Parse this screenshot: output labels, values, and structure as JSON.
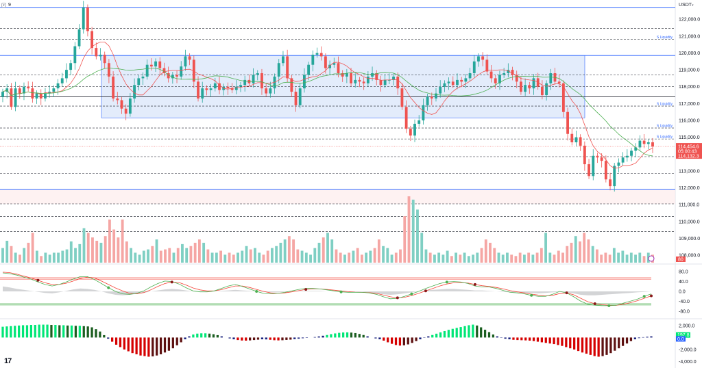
{
  "header": {
    "interval": "9",
    "collapse_icon": "chevron-down-icon",
    "currency": "USDT",
    "currency_icon": "chevron-down-icon"
  },
  "logo": {
    "text": "17",
    "icon": "tradingview-logo-icon"
  },
  "colors": {
    "up": "#26a69a",
    "down": "#ef5350",
    "vol_up": "#7fcfc3",
    "vol_down": "#f5a6a4",
    "ma_fast": "#ef5350",
    "ma_slow": "#4caf50",
    "liquidity": "#2962ff",
    "zone_fill": "#e3ecfb",
    "osc_red": "#f44336",
    "osc_green": "#4caf50",
    "osc_dark": "#1e1e1e",
    "pos_tag": "#2962ff",
    "neg_tag": "#131722"
  },
  "chart_data": {
    "type": "candlestick",
    "price_axis": {
      "range": [
        107600,
        122900
      ],
      "ticks": [
        "122,000.0",
        "121,000.0",
        "120,000.0",
        "119,000.0",
        "118,000.0",
        "117,000.0",
        "116,000.0",
        "115,000.0",
        "114,000.0",
        "113,000.0",
        "112,000.0",
        "111,000.0",
        "110,000.0",
        "109,000.0",
        "108,000.0"
      ],
      "tick_values": [
        122000,
        121000,
        120000,
        119000,
        118000,
        117000,
        116000,
        115000,
        114000,
        113000,
        112000,
        111000,
        110000,
        109000,
        108000
      ]
    },
    "liquidity_lines": [
      {
        "price": 122700,
        "label": "",
        "style": "solid"
      },
      {
        "price": 121450,
        "label": "",
        "style": "dashed"
      },
      {
        "price": 120800,
        "label": "S Liquidity",
        "style": "dashed"
      },
      {
        "price": 119850,
        "label": "",
        "style": "solid"
      },
      {
        "price": 118700,
        "label": "",
        "style": "dashed"
      },
      {
        "price": 118000,
        "label": "",
        "style": "dashed"
      },
      {
        "price": 117400,
        "label": "",
        "style": "solid-dark"
      },
      {
        "price": 116850,
        "label": "S Liquidity",
        "style": "dashed"
      },
      {
        "price": 115550,
        "label": "S Liquidity",
        "style": "dashed"
      },
      {
        "price": 114900,
        "label": "S Liquidity",
        "style": "dashed"
      },
      {
        "price": 113850,
        "label": "",
        "style": "dashed"
      },
      {
        "price": 112850,
        "label": "",
        "style": "dashed"
      },
      {
        "price": 111900,
        "label": "",
        "style": "solid"
      },
      {
        "price": 111050,
        "label": "",
        "style": "dashed"
      },
      {
        "price": 110300,
        "label": "",
        "style": "dashed"
      },
      {
        "price": 109400,
        "label": "",
        "style": "dashed"
      }
    ],
    "zone": {
      "top": 119850,
      "bottom": 116150
    },
    "candle_closes": [
      117700,
      117900,
      116800,
      117900,
      117600,
      118000,
      117900,
      117300,
      117600,
      117300,
      117600,
      117700,
      117900,
      118200,
      118500,
      119000,
      119400,
      120400,
      121400,
      122700,
      121300,
      120300,
      119800,
      119900,
      119400,
      118600,
      117300,
      117200,
      116700,
      116400,
      117300,
      118100,
      118500,
      118600,
      119300,
      119200,
      119500,
      119100,
      118800,
      118500,
      118700,
      118600,
      119200,
      119800,
      119600,
      118300,
      117300,
      117900,
      117800,
      117900,
      118200,
      117800,
      118000,
      117900,
      117800,
      118000,
      118100,
      118400,
      118200,
      118700,
      118800,
      117900,
      117600,
      117900,
      118600,
      119400,
      119800,
      118500,
      117700,
      116900,
      117900,
      118700,
      119300,
      119900,
      120000,
      119800,
      119100,
      119300,
      119400,
      118800,
      118600,
      118800,
      118200,
      118400,
      118300,
      118200,
      118600,
      118800,
      118400,
      118100,
      118400,
      118400,
      118600,
      117900,
      116800,
      115500,
      115100,
      115800,
      116000,
      116900,
      117400,
      117300,
      117600,
      118000,
      118200,
      118300,
      118100,
      118400,
      118300,
      118500,
      118800,
      119500,
      119800,
      119600,
      118900,
      118500,
      118200,
      118700,
      118800,
      119000,
      118700,
      118300,
      117700,
      118100,
      117900,
      118500,
      118000,
      117500,
      118200,
      118800,
      118300,
      118200,
      116500,
      115200,
      114700,
      115000,
      114500,
      113400,
      112700,
      113900,
      113800,
      113600,
      112500,
      112100,
      113300,
      113500,
      113800,
      113900,
      114200,
      114400,
      114800,
      114600,
      114700,
      114450
    ],
    "candle_count_note": "",
    "current_price": "114,454.6",
    "countdown": "05:00:43",
    "prev_close_price": "114,132.3",
    "price_tag_values": [
      114454.6,
      114132.3
    ],
    "volume_label": "80",
    "volume_values": [
      22,
      33,
      25,
      15,
      12,
      22,
      30,
      45,
      18,
      10,
      15,
      12,
      15,
      15,
      18,
      20,
      32,
      22,
      28,
      52,
      45,
      38,
      33,
      30,
      40,
      65,
      50,
      38,
      65,
      32,
      22,
      15,
      12,
      18,
      20,
      25,
      35,
      18,
      20,
      22,
      15,
      22,
      28,
      22,
      25,
      30,
      35,
      30,
      20,
      15,
      15,
      18,
      12,
      15,
      12,
      15,
      18,
      25,
      20,
      22,
      15,
      12,
      18,
      22,
      25,
      30,
      35,
      40,
      35,
      20,
      18,
      15,
      12,
      22,
      30,
      38,
      45,
      35,
      20,
      15,
      12,
      15,
      18,
      22,
      12,
      15,
      18,
      22,
      35,
      25,
      22,
      12,
      15,
      20,
      70,
      100,
      95,
      80,
      45,
      20,
      15,
      12,
      15,
      12,
      18,
      10,
      15,
      12,
      15,
      10,
      12,
      15,
      22,
      35,
      30,
      22,
      15,
      12,
      15,
      12,
      10,
      15,
      12,
      15,
      12,
      15,
      22,
      45,
      15,
      12,
      18,
      15,
      25,
      30,
      40,
      32,
      45,
      35,
      25,
      20,
      12,
      15,
      12,
      22,
      15,
      18,
      12,
      15,
      12,
      15,
      10,
      15,
      12
    ],
    "stoch": {
      "axis_ticks": [
        "80.0",
        "40.0",
        "0.0",
        "-40.0",
        "-80.0"
      ],
      "axis_values": [
        80,
        40,
        0,
        -40,
        -80
      ],
      "range": [
        -100,
        100
      ],
      "upper_band": 55,
      "lower_band": -55,
      "k": [
        75,
        72,
        66,
        58,
        50,
        38,
        28,
        22,
        28,
        38,
        50,
        60,
        60,
        48,
        32,
        15,
        0,
        -10,
        -12,
        -8,
        2,
        18,
        32,
        42,
        40,
        30,
        15,
        2,
        -2,
        -2,
        2,
        12,
        22,
        28,
        20,
        10,
        0,
        -8,
        -10,
        -8,
        -4,
        2,
        8,
        12,
        12,
        10,
        6,
        2,
        -2,
        -4,
        -4,
        -4,
        -6,
        -12,
        -22,
        -30,
        -28,
        -20,
        -10,
        0,
        12,
        22,
        32,
        38,
        40,
        38,
        32,
        22,
        18,
        18,
        12,
        4,
        -4,
        -6,
        -10,
        -16,
        -20,
        -20,
        -12,
        0,
        -6,
        -22,
        -40,
        -52,
        -56,
        -58,
        -58,
        -56,
        -48,
        -40,
        -32,
        -20,
        -10
      ],
      "d": [
        78,
        76,
        70,
        62,
        55,
        45,
        35,
        28,
        28,
        33,
        42,
        52,
        58,
        55,
        42,
        28,
        14,
        2,
        -8,
        -10,
        -5,
        6,
        20,
        32,
        38,
        36,
        26,
        14,
        6,
        2,
        2,
        7,
        15,
        22,
        22,
        16,
        8,
        0,
        -6,
        -8,
        -6,
        -2,
        3,
        8,
        10,
        10,
        8,
        5,
        2,
        -1,
        -3,
        -4,
        -5,
        -8,
        -15,
        -22,
        -26,
        -24,
        -17,
        -8,
        2,
        12,
        22,
        30,
        35,
        36,
        34,
        28,
        23,
        20,
        16,
        10,
        3,
        -2,
        -6,
        -11,
        -15,
        -18,
        -16,
        -9,
        -6,
        -14,
        -28,
        -42,
        -50,
        -54,
        -56,
        -57,
        -52,
        -46,
        -38,
        -28,
        -18
      ],
      "shadow": [
        20,
        16,
        10,
        6,
        2,
        -2,
        -6,
        -8,
        -4,
        2,
        8,
        12,
        10,
        6,
        0,
        -8,
        -14,
        -16,
        -14,
        -10,
        -6,
        0,
        4,
        8,
        10,
        8,
        4,
        0,
        -2,
        -2,
        0,
        2,
        4,
        6,
        4,
        2,
        0,
        -2,
        -4,
        -4,
        -2,
        0,
        2,
        2,
        2,
        2,
        0,
        0,
        -2,
        -2,
        -2,
        -2,
        -4,
        -8,
        -12,
        -14,
        -12,
        -8,
        -4,
        0,
        4,
        6,
        8,
        10,
        10,
        8,
        6,
        4,
        4,
        2,
        0,
        -2,
        -4,
        -4,
        -6,
        -6,
        -8,
        -6,
        -4,
        -2,
        -4,
        -8,
        -14,
        -16,
        -16,
        -14,
        -12,
        -10,
        -8,
        -6,
        -4,
        -2,
        0
      ],
      "green_dot_indices": [
        15,
        36,
        48,
        58,
        63,
        75,
        86,
        91
      ],
      "red_dot_indices": [
        5,
        24,
        43,
        56,
        60,
        67,
        80,
        84,
        92
      ]
    },
    "histogram": {
      "axis_ticks": [
        "2,000.0",
        "-2,000.0",
        "-4,000.0"
      ],
      "axis_values": [
        2000,
        -2000,
        -4000
      ],
      "range": [
        -4400,
        2900
      ],
      "current_value": "197.8",
      "zero_label": "0.0",
      "values": [
        1800,
        1850,
        1900,
        1950,
        2000,
        2050,
        2050,
        2100,
        2100,
        2150,
        2150,
        2150,
        2100,
        2100,
        2050,
        2050,
        2000,
        2000,
        1950,
        1950,
        1900,
        1850,
        1700,
        1400,
        1000,
        400,
        -200,
        -700,
        -1200,
        -1600,
        -2000,
        -2300,
        -2600,
        -2800,
        -3000,
        -3100,
        -3200,
        -3150,
        -3000,
        -2800,
        -2500,
        -2200,
        -1800,
        -1300,
        -800,
        -300,
        200,
        500,
        650,
        700,
        700,
        650,
        550,
        400,
        200,
        0,
        -150,
        -300,
        -420,
        -500,
        -520,
        -480,
        -420,
        -360,
        -300,
        -320,
        -380,
        -450,
        -480,
        -450,
        -400,
        -350,
        -280,
        -200,
        -120,
        -60,
        0,
        80,
        180,
        300,
        420,
        560,
        680,
        780,
        840,
        860,
        820,
        740,
        600,
        420,
        200,
        0,
        -150,
        -300,
        -520,
        -800,
        -1050,
        -1250,
        -1350,
        -1300,
        -1150,
        -900,
        -600,
        -300,
        -50,
        200,
        420,
        640,
        860,
        1080,
        1280,
        1450,
        1600,
        1750,
        1900,
        2050,
        2150,
        2000,
        1700,
        1300,
        900,
        500,
        200,
        -50,
        -200,
        -300,
        -380,
        -420,
        -450,
        -480,
        -520,
        -600,
        -700,
        -800,
        -900,
        -1000,
        -1100,
        -1250,
        -1400,
        -1600,
        -1800,
        -2000,
        -2250,
        -2500,
        -2700,
        -2900,
        -3100,
        -3200,
        -3100,
        -2900,
        -2600,
        -2200,
        -1800,
        -1400,
        -1000,
        -600,
        -300,
        -100,
        60,
        120,
        197.8
      ]
    }
  }
}
